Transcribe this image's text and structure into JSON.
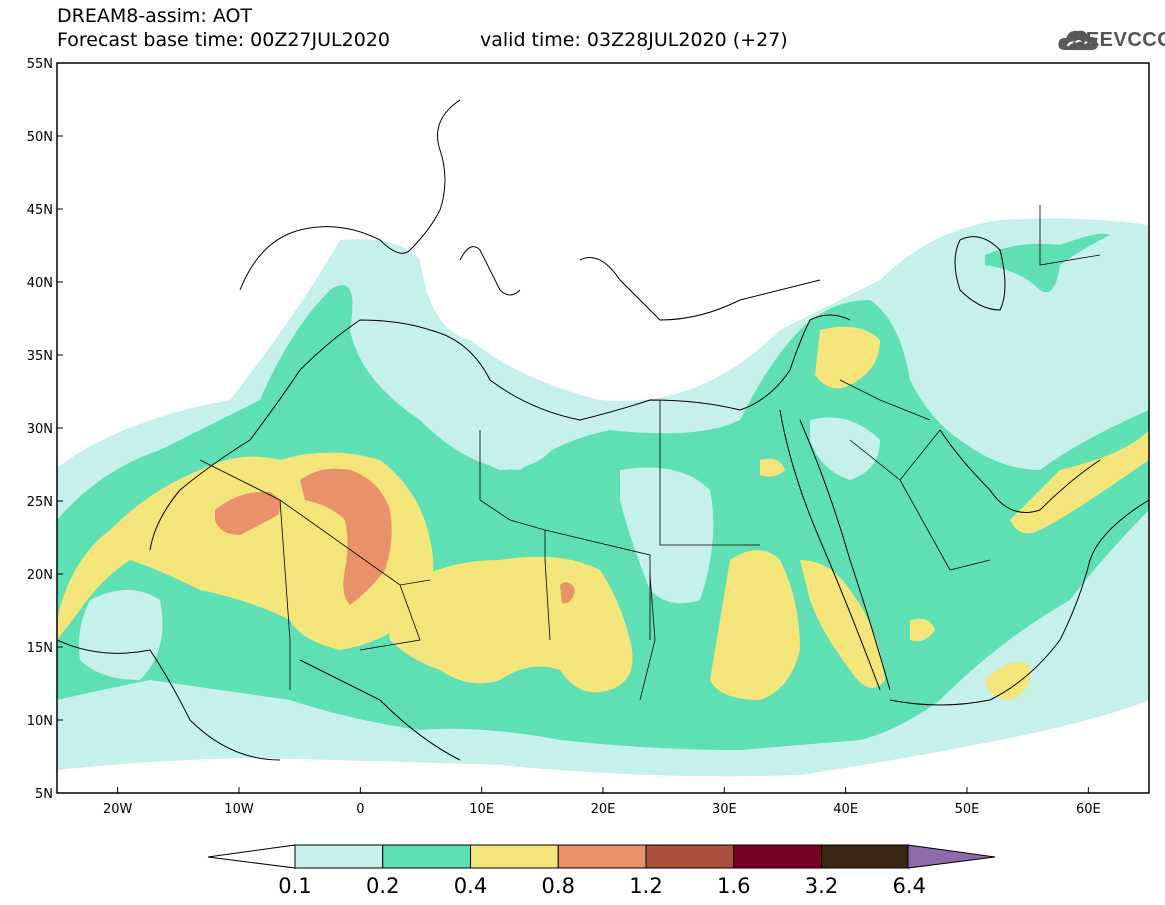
{
  "header": {
    "title": "DREAM8-assim: AOT",
    "base_time": "Forecast base time: 00Z27JUL2020",
    "valid_time": "valid time: 03Z28JUL2020 (+27)",
    "logo_text": "SEEVCCC"
  },
  "map": {
    "lon_range": [
      -25,
      65
    ],
    "lat_range": [
      5,
      55
    ],
    "lat_ticks": [
      "55N",
      "50N",
      "45N",
      "40N",
      "35N",
      "30N",
      "25N",
      "20N",
      "15N",
      "10N",
      "5N"
    ],
    "lon_ticks": [
      "20W",
      "10W",
      "0",
      "10E",
      "20E",
      "30E",
      "40E",
      "50E",
      "60E"
    ]
  },
  "colorbar": {
    "colors": [
      "#c6f0ea",
      "#5fe0b4",
      "#f3e57a",
      "#e8916a",
      "#a9503d",
      "#7a0025",
      "#3a2612",
      "#8e6aa8"
    ],
    "under_color": "#ffffff",
    "labels": [
      "0.1",
      "0.2",
      "0.4",
      "0.8",
      "1.2",
      "1.6",
      "3.2",
      "6.4"
    ]
  },
  "colors": {
    "lt_cyan": "#c6f0ea",
    "green": "#5fe0b4",
    "yellow": "#f3e57a",
    "orange": "#e8916a"
  }
}
